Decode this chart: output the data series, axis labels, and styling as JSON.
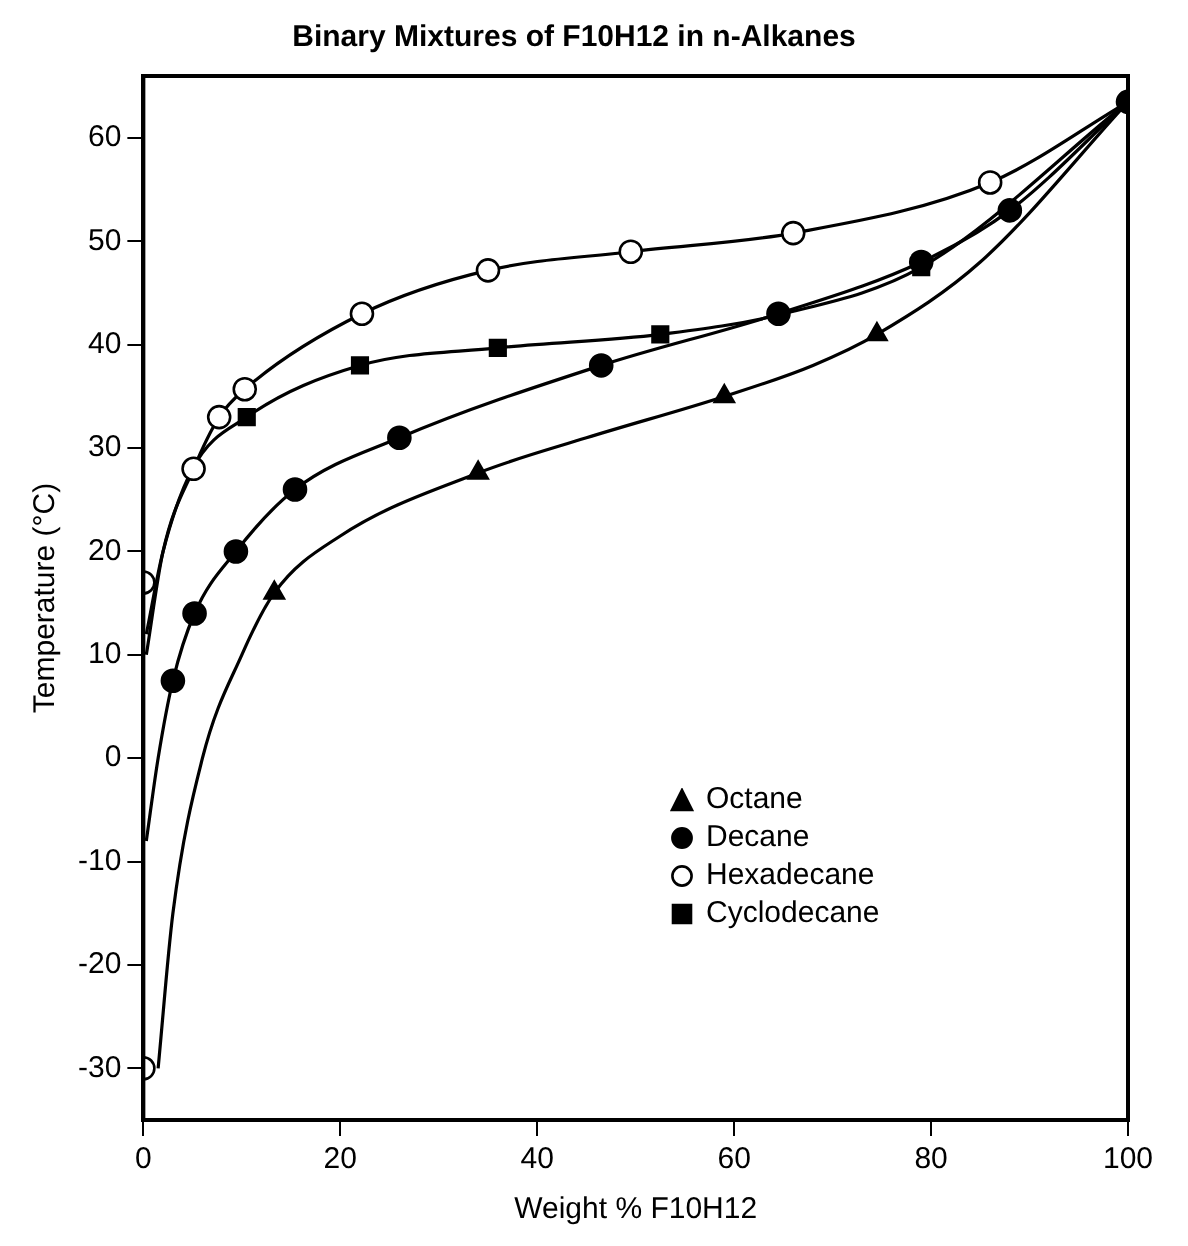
{
  "chart_data": {
    "type": "scatter",
    "title": "Binary Mixtures of F10H12 in n-Alkanes",
    "xlabel": "Weight % F10H12",
    "ylabel": "Temperature (°C)",
    "xlim": [
      0,
      100
    ],
    "xticks": [
      0,
      20,
      40,
      60,
      80,
      100
    ],
    "ylim": [
      -35,
      66
    ],
    "yticks": [
      -30,
      -20,
      -10,
      0,
      10,
      20,
      30,
      40,
      50,
      60
    ],
    "grid": false,
    "legend": "right",
    "series": [
      {
        "name": "Octane",
        "color": "#000000",
        "marker": "triangle",
        "x": [
          13.3,
          34,
          59,
          74.5
        ],
        "values": [
          16,
          27.6,
          35,
          41
        ]
      },
      {
        "name": "Decane",
        "color": "#000000",
        "marker": "circle",
        "x": [
          3,
          5.2,
          9.4,
          15.4,
          26,
          46.5,
          64.5,
          79,
          88,
          100
        ],
        "values": [
          7.5,
          14,
          20,
          26,
          31,
          38,
          43,
          48,
          53,
          63.5
        ]
      },
      {
        "name": "Hexadecane",
        "color": "#ffffff",
        "marker": "circle",
        "x": [
          0,
          0,
          5.1,
          7.7,
          10.3,
          22.2,
          35,
          49.5,
          66,
          86
        ],
        "values": [
          -30,
          17,
          28,
          33,
          35.7,
          43,
          47.2,
          49,
          50.8,
          55.7
        ]
      },
      {
        "name": "Cyclodecane",
        "color": "#000000",
        "marker": "square",
        "x": [
          10.5,
          22,
          36,
          52.5,
          79
        ],
        "values": [
          33,
          38,
          39.7,
          41,
          47.5
        ]
      },
      {
        "type": "line",
        "color": "#000000",
        "marker": "none",
        "x": [
          1.5,
          3,
          6,
          10,
          13.3,
          20,
          34,
          45,
          59,
          68,
          74.5,
          85,
          100
        ],
        "values": [
          -30,
          -15,
          0,
          10,
          16,
          21.5,
          27.6,
          31,
          35,
          38,
          41,
          48,
          63.5
        ]
      },
      {
        "type": "line",
        "color": "#000000",
        "marker": "none",
        "x": [
          0.3,
          1.5,
          3,
          5.2,
          9.4,
          15.4,
          26,
          46.5,
          64.5,
          79,
          88,
          100
        ],
        "values": [
          -8,
          0,
          7.5,
          14,
          20,
          26,
          31,
          38,
          43,
          48,
          53,
          63.5
        ]
      },
      {
        "type": "line",
        "color": "#000000",
        "marker": "none",
        "x": [
          0.3,
          2,
          5.1,
          7.7,
          10.3,
          22.2,
          35,
          49.5,
          66,
          86,
          100
        ],
        "values": [
          10,
          20,
          28,
          33,
          35.7,
          43,
          47.2,
          49,
          50.8,
          55.7,
          63.5
        ]
      },
      {
        "type": "line",
        "color": "#000000",
        "marker": "none",
        "x": [
          0.3,
          2,
          5,
          10.5,
          22,
          36,
          52.5,
          65,
          79,
          100
        ],
        "values": [
          12,
          20,
          28,
          33,
          38,
          39.7,
          41,
          43,
          47.5,
          63.5
        ]
      }
    ]
  }
}
